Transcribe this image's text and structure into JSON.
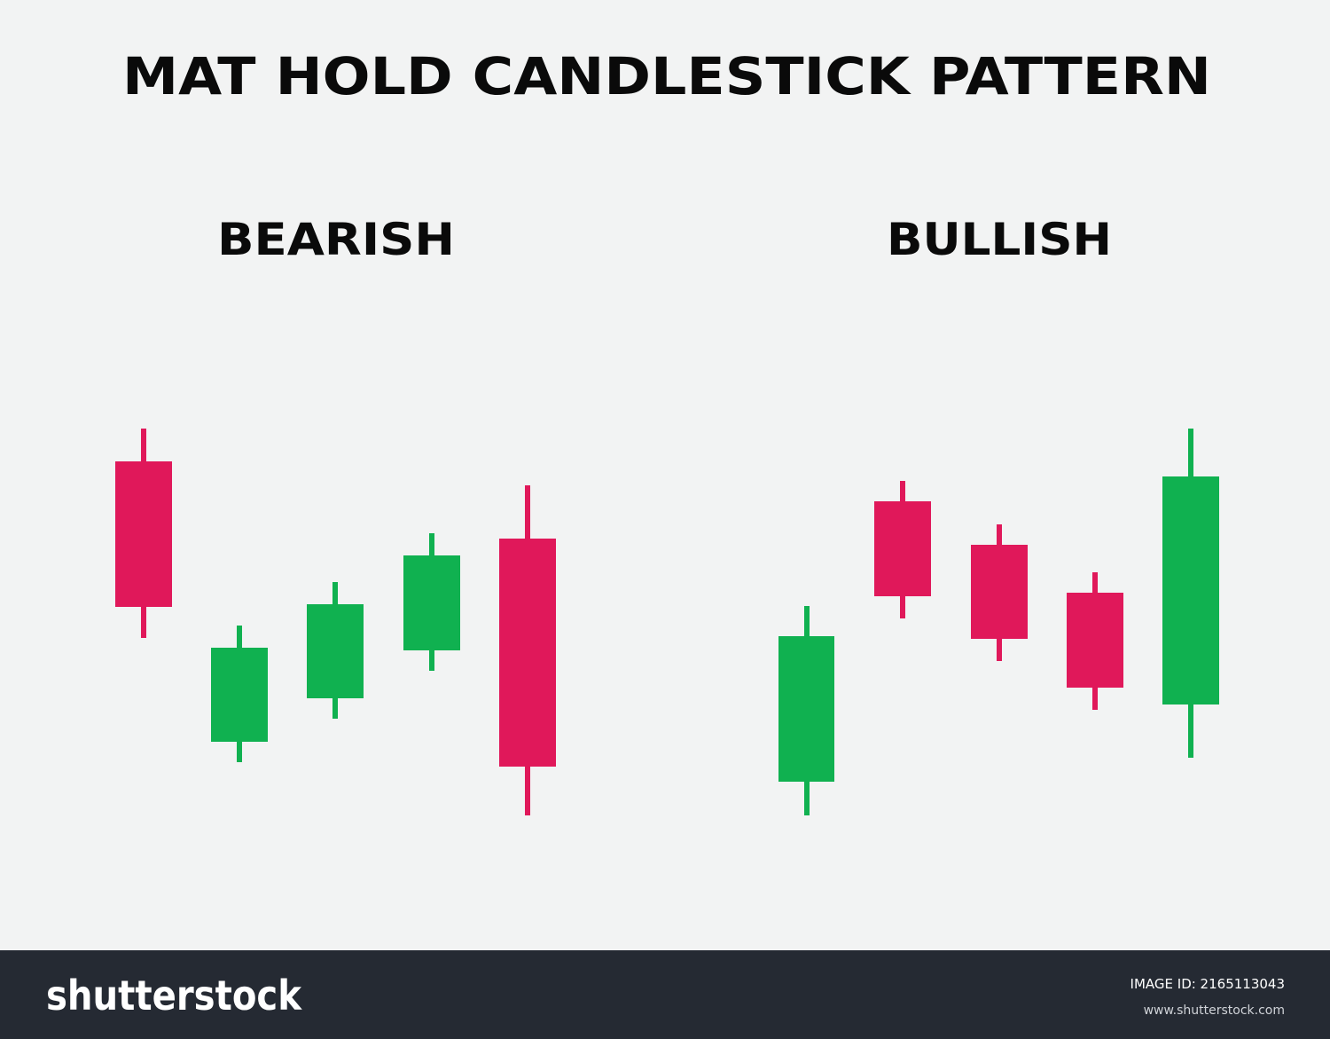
{
  "title": "MAT HOLD CANDLESTICK PATTERN",
  "panels": [
    {
      "label": "BEARISH"
    },
    {
      "label": "BULLISH"
    }
  ],
  "footer": {
    "brand": "shutterstock",
    "image_id": "IMAGE ID: 2165113043",
    "url": "www.shutterstock.com"
  }
}
